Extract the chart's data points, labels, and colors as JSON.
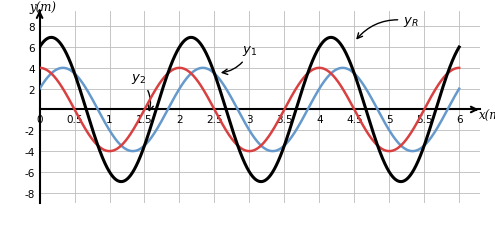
{
  "xlabel": "x(m)",
  "ylabel": "y(m)",
  "xlim": [
    0,
    6.3
  ],
  "ylim": [
    -9,
    9.5
  ],
  "xticks": [
    0,
    0.5,
    1,
    1.5,
    2,
    2.5,
    3,
    3.5,
    4,
    4.5,
    5,
    5.5,
    6
  ],
  "yticks": [
    -8,
    -6,
    -4,
    -2,
    2,
    4,
    6,
    8
  ],
  "A": 4.0,
  "wavelength": 2.0,
  "phase_y1": 1.5707963267948966,
  "phase_y2": 0.5235987755982988,
  "color_y1": "#d94040",
  "color_y2": "#6699cc",
  "color_yR": "#000000",
  "background_color": "#ffffff",
  "grid_color": "#bbbbbb",
  "lw_y1": 1.8,
  "lw_y2": 1.8,
  "lw_yR": 2.2,
  "figsize": [
    4.95,
    2.32
  ],
  "dpi": 100
}
